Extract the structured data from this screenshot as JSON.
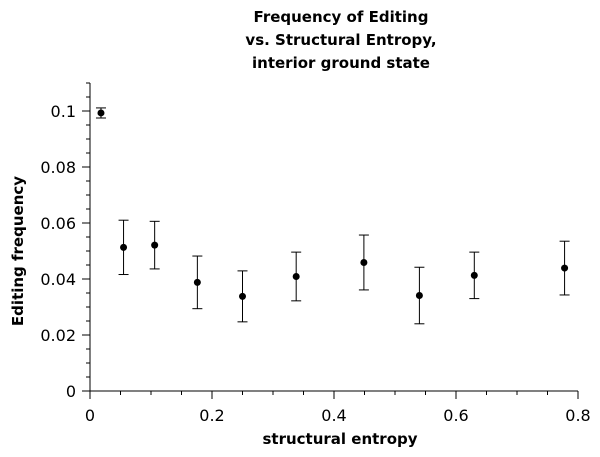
{
  "chart_data": {
    "type": "scatter",
    "title": [
      "Frequency of Editing",
      "vs. Structural Entropy,",
      "interior ground state"
    ],
    "xlabel": "structural entropy",
    "ylabel": "Editing frequency",
    "xlim": [
      0,
      0.8
    ],
    "ylim": [
      0,
      0.11
    ],
    "x_ticks": [
      0,
      0.2,
      0.4,
      0.6,
      0.8
    ],
    "x_tick_labels": [
      "0",
      "0.2",
      "0.4",
      "0.6",
      "0.8"
    ],
    "y_ticks": [
      0,
      0.02,
      0.04,
      0.06,
      0.08,
      0.1
    ],
    "y_tick_labels": [
      "0",
      "0.02",
      "0.04",
      "0.06",
      "0.08",
      "0.1"
    ],
    "grid": false,
    "points": [
      {
        "x": 0.018,
        "y": 0.0993,
        "err": 0.0018
      },
      {
        "x": 0.055,
        "y": 0.0513,
        "err": 0.0097
      },
      {
        "x": 0.106,
        "y": 0.0521,
        "err": 0.0085
      },
      {
        "x": 0.176,
        "y": 0.0388,
        "err": 0.0094
      },
      {
        "x": 0.25,
        "y": 0.0338,
        "err": 0.0091
      },
      {
        "x": 0.338,
        "y": 0.0409,
        "err": 0.0087
      },
      {
        "x": 0.449,
        "y": 0.0459,
        "err": 0.0098
      },
      {
        "x": 0.54,
        "y": 0.0341,
        "err": 0.0101
      },
      {
        "x": 0.63,
        "y": 0.0413,
        "err": 0.0083
      },
      {
        "x": 0.778,
        "y": 0.0439,
        "err": 0.0096
      }
    ]
  }
}
